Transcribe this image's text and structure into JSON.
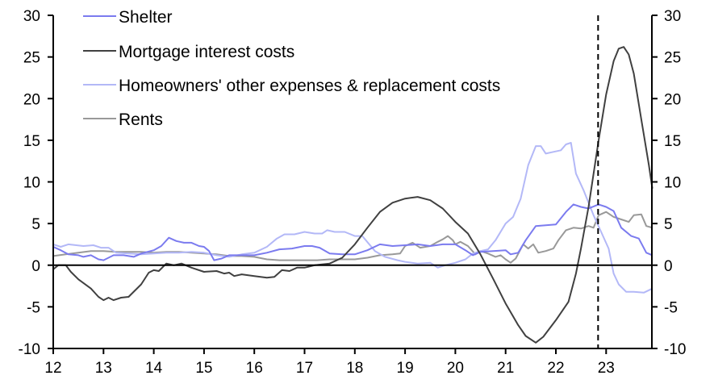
{
  "chart_data": {
    "type": "line",
    "title": "",
    "xlabel": "",
    "ylabel": "",
    "xlim": [
      12,
      23.92
    ],
    "ylim": [
      -10,
      30
    ],
    "x_ticks": [
      "12",
      "13",
      "14",
      "15",
      "16",
      "17",
      "18",
      "19",
      "20",
      "21",
      "22",
      "23"
    ],
    "y_ticks_left": [
      "30",
      "25",
      "20",
      "15",
      "10",
      "5",
      "0",
      "-5",
      "-10"
    ],
    "y_ticks_right": [
      "30",
      "25",
      "20",
      "15",
      "10",
      "5",
      "0",
      "-5",
      "-10"
    ],
    "y_tick_values": [
      30,
      25,
      20,
      15,
      10,
      5,
      0,
      -5,
      -10
    ],
    "vertical_marker_x": 22.84,
    "grid": false,
    "legend_position": "top-left",
    "series": [
      {
        "name": "Shelter",
        "color": "#7b7bef",
        "points": [
          [
            12.0,
            2.2
          ],
          [
            12.15,
            1.8
          ],
          [
            12.3,
            1.3
          ],
          [
            12.5,
            1.2
          ],
          [
            12.6,
            1.0
          ],
          [
            12.75,
            1.2
          ],
          [
            12.9,
            0.7
          ],
          [
            13.0,
            0.6
          ],
          [
            13.2,
            1.2
          ],
          [
            13.4,
            1.2
          ],
          [
            13.6,
            1.0
          ],
          [
            13.75,
            1.4
          ],
          [
            14.0,
            1.8
          ],
          [
            14.15,
            2.3
          ],
          [
            14.3,
            3.3
          ],
          [
            14.45,
            2.9
          ],
          [
            14.6,
            2.7
          ],
          [
            14.75,
            2.7
          ],
          [
            14.9,
            2.3
          ],
          [
            15.0,
            2.2
          ],
          [
            15.1,
            1.7
          ],
          [
            15.2,
            0.6
          ],
          [
            15.35,
            0.8
          ],
          [
            15.5,
            1.2
          ],
          [
            15.75,
            1.2
          ],
          [
            16.0,
            1.2
          ],
          [
            16.25,
            1.5
          ],
          [
            16.5,
            1.9
          ],
          [
            16.75,
            2.0
          ],
          [
            17.0,
            2.3
          ],
          [
            17.15,
            2.3
          ],
          [
            17.3,
            2.1
          ],
          [
            17.5,
            1.4
          ],
          [
            17.75,
            1.3
          ],
          [
            18.0,
            1.3
          ],
          [
            18.25,
            1.8
          ],
          [
            18.5,
            2.5
          ],
          [
            18.75,
            2.3
          ],
          [
            19.0,
            2.4
          ],
          [
            19.25,
            2.5
          ],
          [
            19.5,
            2.3
          ],
          [
            19.75,
            2.5
          ],
          [
            20.0,
            2.5
          ],
          [
            20.2,
            1.8
          ],
          [
            20.35,
            1.2
          ],
          [
            20.5,
            1.6
          ],
          [
            20.75,
            1.7
          ],
          [
            21.0,
            1.8
          ],
          [
            21.1,
            1.3
          ],
          [
            21.25,
            1.5
          ],
          [
            21.4,
            3.0
          ],
          [
            21.6,
            4.7
          ],
          [
            21.8,
            4.8
          ],
          [
            22.0,
            4.9
          ],
          [
            22.2,
            6.4
          ],
          [
            22.35,
            7.3
          ],
          [
            22.5,
            7.0
          ],
          [
            22.65,
            6.8
          ],
          [
            22.85,
            7.3
          ],
          [
            23.0,
            7.0
          ],
          [
            23.15,
            6.5
          ],
          [
            23.3,
            4.5
          ],
          [
            23.5,
            3.5
          ],
          [
            23.65,
            3.2
          ],
          [
            23.8,
            1.5
          ],
          [
            23.92,
            1.2
          ]
        ]
      },
      {
        "name": "Mortgage interest costs",
        "color": "#404040",
        "points": [
          [
            12.0,
            -0.5
          ],
          [
            12.1,
            0.0
          ],
          [
            12.25,
            0.0
          ],
          [
            12.35,
            -0.8
          ],
          [
            12.5,
            -1.7
          ],
          [
            12.75,
            -2.8
          ],
          [
            12.9,
            -3.8
          ],
          [
            13.0,
            -4.2
          ],
          [
            13.1,
            -3.9
          ],
          [
            13.2,
            -4.2
          ],
          [
            13.35,
            -3.9
          ],
          [
            13.5,
            -3.8
          ],
          [
            13.75,
            -2.3
          ],
          [
            13.9,
            -0.9
          ],
          [
            14.0,
            -0.6
          ],
          [
            14.1,
            -0.7
          ],
          [
            14.25,
            0.2
          ],
          [
            14.4,
            0.0
          ],
          [
            14.55,
            0.2
          ],
          [
            14.75,
            -0.3
          ],
          [
            15.0,
            -0.8
          ],
          [
            15.25,
            -0.7
          ],
          [
            15.4,
            -1.0
          ],
          [
            15.5,
            -0.9
          ],
          [
            15.6,
            -1.3
          ],
          [
            15.75,
            -1.1
          ],
          [
            16.0,
            -1.3
          ],
          [
            16.25,
            -1.5
          ],
          [
            16.4,
            -1.4
          ],
          [
            16.55,
            -0.6
          ],
          [
            16.7,
            -0.7
          ],
          [
            16.85,
            -0.3
          ],
          [
            17.0,
            -0.3
          ],
          [
            17.2,
            0.0
          ],
          [
            17.5,
            0.2
          ],
          [
            17.75,
            0.9
          ],
          [
            18.0,
            2.5
          ],
          [
            18.25,
            4.5
          ],
          [
            18.5,
            6.4
          ],
          [
            18.75,
            7.5
          ],
          [
            19.0,
            8.0
          ],
          [
            19.25,
            8.2
          ],
          [
            19.5,
            7.8
          ],
          [
            19.75,
            6.8
          ],
          [
            20.0,
            5.2
          ],
          [
            20.25,
            3.8
          ],
          [
            20.5,
            1.3
          ],
          [
            20.75,
            -1.6
          ],
          [
            21.0,
            -4.6
          ],
          [
            21.25,
            -7.2
          ],
          [
            21.4,
            -8.5
          ],
          [
            21.6,
            -9.3
          ],
          [
            21.75,
            -8.6
          ],
          [
            22.0,
            -6.6
          ],
          [
            22.25,
            -4.4
          ],
          [
            22.4,
            -1.0
          ],
          [
            22.5,
            2.0
          ],
          [
            22.65,
            7.0
          ],
          [
            22.85,
            15.0
          ],
          [
            23.0,
            20.5
          ],
          [
            23.15,
            24.5
          ],
          [
            23.25,
            26.0
          ],
          [
            23.35,
            26.2
          ],
          [
            23.45,
            25.3
          ],
          [
            23.55,
            23.0
          ],
          [
            23.7,
            17.5
          ],
          [
            23.85,
            12.0
          ],
          [
            23.92,
            9.2
          ]
        ]
      },
      {
        "name": "Homeowners' other expenses & replacement costs",
        "color": "#b3b8f7",
        "points": [
          [
            12.0,
            2.5
          ],
          [
            12.15,
            2.2
          ],
          [
            12.3,
            2.5
          ],
          [
            12.6,
            2.3
          ],
          [
            12.8,
            2.4
          ],
          [
            12.95,
            2.1
          ],
          [
            13.1,
            2.1
          ],
          [
            13.25,
            1.5
          ],
          [
            13.5,
            1.4
          ],
          [
            13.75,
            1.3
          ],
          [
            14.0,
            1.4
          ],
          [
            14.25,
            1.5
          ],
          [
            14.5,
            1.5
          ],
          [
            14.75,
            1.6
          ],
          [
            15.0,
            1.5
          ],
          [
            15.25,
            1.2
          ],
          [
            15.5,
            1.0
          ],
          [
            15.75,
            1.3
          ],
          [
            16.0,
            1.5
          ],
          [
            16.25,
            2.2
          ],
          [
            16.45,
            3.2
          ],
          [
            16.6,
            3.7
          ],
          [
            16.8,
            3.7
          ],
          [
            17.0,
            4.0
          ],
          [
            17.2,
            3.8
          ],
          [
            17.35,
            3.8
          ],
          [
            17.45,
            4.2
          ],
          [
            17.6,
            4.0
          ],
          [
            17.8,
            4.0
          ],
          [
            18.0,
            3.5
          ],
          [
            18.15,
            3.5
          ],
          [
            18.4,
            1.7
          ],
          [
            18.6,
            1.0
          ],
          [
            18.85,
            0.6
          ],
          [
            19.0,
            0.4
          ],
          [
            19.25,
            0.2
          ],
          [
            19.5,
            0.3
          ],
          [
            19.65,
            -0.3
          ],
          [
            19.8,
            0.0
          ],
          [
            20.0,
            0.3
          ],
          [
            20.2,
            0.7
          ],
          [
            20.35,
            1.4
          ],
          [
            20.5,
            1.7
          ],
          [
            20.65,
            1.9
          ],
          [
            20.8,
            3.0
          ],
          [
            21.0,
            5.0
          ],
          [
            21.15,
            5.8
          ],
          [
            21.3,
            8.0
          ],
          [
            21.45,
            12.0
          ],
          [
            21.6,
            14.3
          ],
          [
            21.7,
            14.3
          ],
          [
            21.8,
            13.4
          ],
          [
            21.95,
            13.6
          ],
          [
            22.1,
            13.8
          ],
          [
            22.2,
            14.5
          ],
          [
            22.3,
            14.7
          ],
          [
            22.4,
            11.0
          ],
          [
            22.55,
            9.0
          ],
          [
            22.75,
            6.0
          ],
          [
            22.9,
            4.0
          ],
          [
            23.05,
            2.0
          ],
          [
            23.15,
            -1.0
          ],
          [
            23.25,
            -2.3
          ],
          [
            23.4,
            -3.2
          ],
          [
            23.55,
            -3.2
          ],
          [
            23.75,
            -3.3
          ],
          [
            23.92,
            -2.8
          ]
        ]
      },
      {
        "name": "Rents",
        "color": "#999999",
        "points": [
          [
            12.0,
            1.1
          ],
          [
            12.25,
            1.3
          ],
          [
            12.5,
            1.5
          ],
          [
            12.75,
            1.7
          ],
          [
            13.0,
            1.7
          ],
          [
            13.25,
            1.6
          ],
          [
            13.5,
            1.6
          ],
          [
            13.75,
            1.6
          ],
          [
            14.0,
            1.5
          ],
          [
            14.25,
            1.6
          ],
          [
            14.5,
            1.6
          ],
          [
            14.75,
            1.5
          ],
          [
            15.0,
            1.4
          ],
          [
            15.25,
            1.3
          ],
          [
            15.5,
            1.1
          ],
          [
            15.75,
            1.1
          ],
          [
            16.0,
            1.0
          ],
          [
            16.25,
            0.7
          ],
          [
            16.5,
            0.6
          ],
          [
            16.75,
            0.6
          ],
          [
            17.0,
            0.6
          ],
          [
            17.25,
            0.6
          ],
          [
            17.5,
            0.7
          ],
          [
            17.75,
            0.7
          ],
          [
            18.0,
            0.7
          ],
          [
            18.25,
            0.9
          ],
          [
            18.5,
            1.2
          ],
          [
            18.75,
            1.3
          ],
          [
            18.9,
            1.4
          ],
          [
            19.0,
            2.3
          ],
          [
            19.15,
            2.7
          ],
          [
            19.3,
            2.1
          ],
          [
            19.5,
            2.3
          ],
          [
            19.65,
            2.8
          ],
          [
            19.75,
            3.1
          ],
          [
            19.85,
            3.5
          ],
          [
            19.95,
            3.0
          ],
          [
            20.0,
            2.5
          ],
          [
            20.1,
            2.8
          ],
          [
            20.25,
            2.3
          ],
          [
            20.4,
            1.3
          ],
          [
            20.5,
            1.7
          ],
          [
            20.65,
            1.4
          ],
          [
            20.8,
            1.0
          ],
          [
            20.9,
            1.2
          ],
          [
            21.0,
            0.7
          ],
          [
            21.1,
            0.3
          ],
          [
            21.2,
            0.8
          ],
          [
            21.35,
            2.5
          ],
          [
            21.45,
            2.0
          ],
          [
            21.55,
            2.5
          ],
          [
            21.65,
            1.5
          ],
          [
            21.8,
            1.7
          ],
          [
            21.95,
            2.0
          ],
          [
            22.05,
            3.0
          ],
          [
            22.2,
            4.2
          ],
          [
            22.35,
            4.5
          ],
          [
            22.5,
            4.4
          ],
          [
            22.65,
            4.7
          ],
          [
            22.75,
            4.5
          ],
          [
            22.85,
            6.0
          ],
          [
            23.0,
            6.4
          ],
          [
            23.15,
            5.8
          ],
          [
            23.3,
            5.5
          ],
          [
            23.45,
            5.2
          ],
          [
            23.55,
            6.0
          ],
          [
            23.7,
            6.1
          ],
          [
            23.8,
            4.7
          ],
          [
            23.92,
            4.5
          ]
        ]
      }
    ]
  }
}
